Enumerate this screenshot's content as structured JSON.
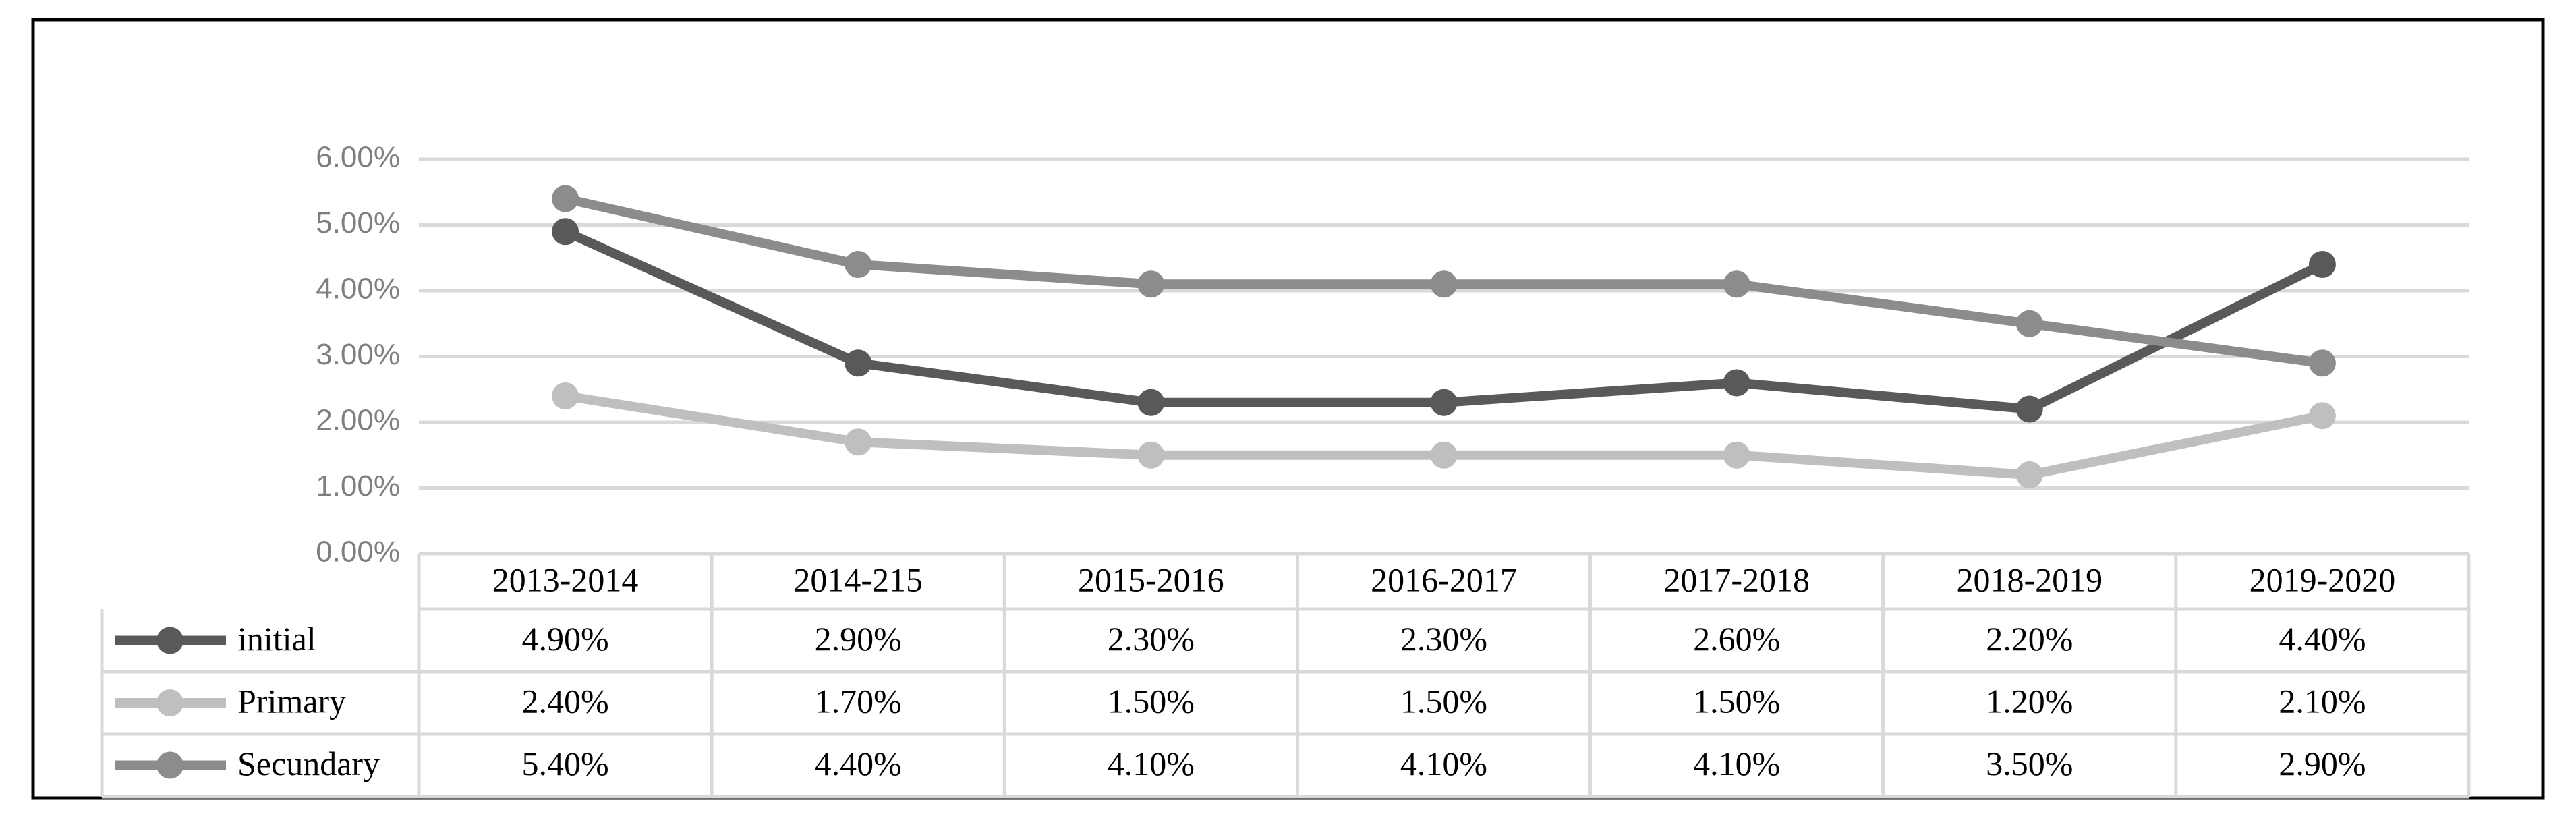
{
  "chart_data": {
    "type": "line",
    "categories": [
      "2013-2014",
      "2014-215",
      "2015-2016",
      "2016-2017",
      "2017-2018",
      "2018-2019",
      "2019-2020"
    ],
    "series": [
      {
        "name": "initial",
        "color": "#595959",
        "values": [
          4.9,
          2.9,
          2.3,
          2.3,
          2.6,
          2.2,
          4.4
        ],
        "value_labels": [
          "4.90%",
          "2.90%",
          "2.30%",
          "2.30%",
          "2.60%",
          "2.20%",
          "4.40%"
        ]
      },
      {
        "name": "Primary",
        "color": "#bfbfbf",
        "values": [
          2.4,
          1.7,
          1.5,
          1.5,
          1.5,
          1.2,
          2.1
        ],
        "value_labels": [
          "2.40%",
          "1.70%",
          "1.50%",
          "1.50%",
          "1.50%",
          "1.20%",
          "2.10%"
        ]
      },
      {
        "name": "Secundary",
        "color": "#8c8c8c",
        "values": [
          5.4,
          4.4,
          4.1,
          4.1,
          4.1,
          3.5,
          2.9
        ],
        "value_labels": [
          "5.40%",
          "4.40%",
          "4.10%",
          "4.10%",
          "4.10%",
          "3.50%",
          "2.90%"
        ]
      }
    ],
    "ylim": [
      0,
      6
    ],
    "yticks": [
      {
        "value": 0,
        "label": "0.00%"
      },
      {
        "value": 1,
        "label": "1.00%"
      },
      {
        "value": 2,
        "label": "2.00%"
      },
      {
        "value": 3,
        "label": "3.00%"
      },
      {
        "value": 4,
        "label": "4.00%"
      },
      {
        "value": 5,
        "label": "5.00%"
      },
      {
        "value": 6,
        "label": "6.00%"
      }
    ],
    "grid": true
  }
}
